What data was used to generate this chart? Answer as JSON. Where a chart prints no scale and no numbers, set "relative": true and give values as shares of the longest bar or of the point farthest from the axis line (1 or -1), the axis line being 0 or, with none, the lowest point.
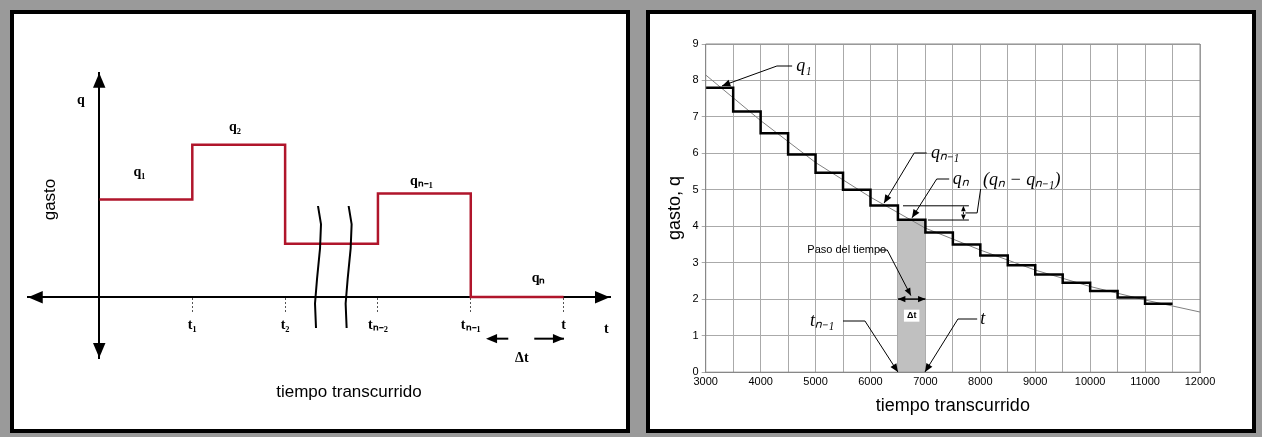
{
  "chart_data": [
    {
      "type": "step",
      "relative": true,
      "ylabel": "gasto",
      "xlabel": "tiempo transcurrido",
      "categories": [
        null,
        "t₁",
        "t₂",
        "tₙ₋₂",
        "tₙ₋₁",
        "t"
      ],
      "series": [
        {
          "color": "#b0152b",
          "values": [
            0.64,
            1,
            0.35,
            0.68,
            0,
            0
          ]
        }
      ],
      "annotations": [
        "q",
        "t",
        "q₁",
        "q₂",
        "qₙ₋₁",
        "qₙ",
        "Δt"
      ]
    },
    {
      "type": "step",
      "xlabel": "tiempo transcurrido",
      "ylabel": "gasto, q",
      "xlim": [
        3000,
        12000
      ],
      "xticks": [
        3000,
        {
          "value": 3500,
          "label": null
        },
        4000,
        {
          "value": 4500,
          "label": null
        },
        5000,
        {
          "value": 5500,
          "label": null
        },
        6000,
        {
          "value": 6500,
          "label": null
        },
        7000,
        {
          "value": 7500,
          "label": null
        },
        8000,
        {
          "value": 8500,
          "label": null
        },
        9000,
        {
          "value": 9500,
          "label": null
        },
        10000,
        {
          "value": 10500,
          "label": null
        },
        11000,
        {
          "value": 11500,
          "label": null
        },
        12000
      ],
      "ylim": [
        0,
        9
      ],
      "yticks": [
        0,
        1,
        2,
        3,
        4,
        5,
        6,
        7,
        8,
        9
      ],
      "grid": true,
      "series": [
        {
          "type": "area",
          "color": "#c0c0c0",
          "x": [
            6500,
            7000
          ],
          "values": [
            4.18,
            4.18
          ]
        },
        {
          "type": "line",
          "color": "#808080",
          "x": [
            3000,
            4000,
            5000,
            6000,
            7000,
            8000,
            9000,
            10000,
            11000,
            12000
          ],
          "values": [
            8.15,
            6.9,
            5.75,
            4.8,
            3.95,
            3.35,
            2.8,
            2.35,
            1.98,
            1.65
          ]
        },
        {
          "color": "#000000",
          "x": [
            3000,
            3500,
            4000,
            4500,
            5000,
            5500,
            6000,
            6500,
            7000,
            7500,
            8000,
            8500,
            9000,
            9500,
            10000,
            10500,
            11000,
            11500
          ],
          "values": [
            7.8,
            7.15,
            6.55,
            5.97,
            5.47,
            5.0,
            4.57,
            4.18,
            3.83,
            3.5,
            3.2,
            2.93,
            2.68,
            2.45,
            2.23,
            2.05,
            1.88,
            1.88
          ]
        }
      ],
      "annotations": [
        {
          "text": "q₁",
          "x": 3300,
          "y": 7.8
        },
        {
          "text": "qₙ₋₁",
          "x": 6250,
          "y": 4.57
        },
        {
          "text": "qₙ",
          "x": 6750,
          "y": 4.18
        },
        "(qₙ − qₙ₋₁)",
        "Paso del tiempo",
        "Δt",
        {
          "text": "tₙ₋₁",
          "x": 6500,
          "y": 0
        },
        {
          "text": "t",
          "x": 7000,
          "y": 0
        }
      ]
    }
  ]
}
